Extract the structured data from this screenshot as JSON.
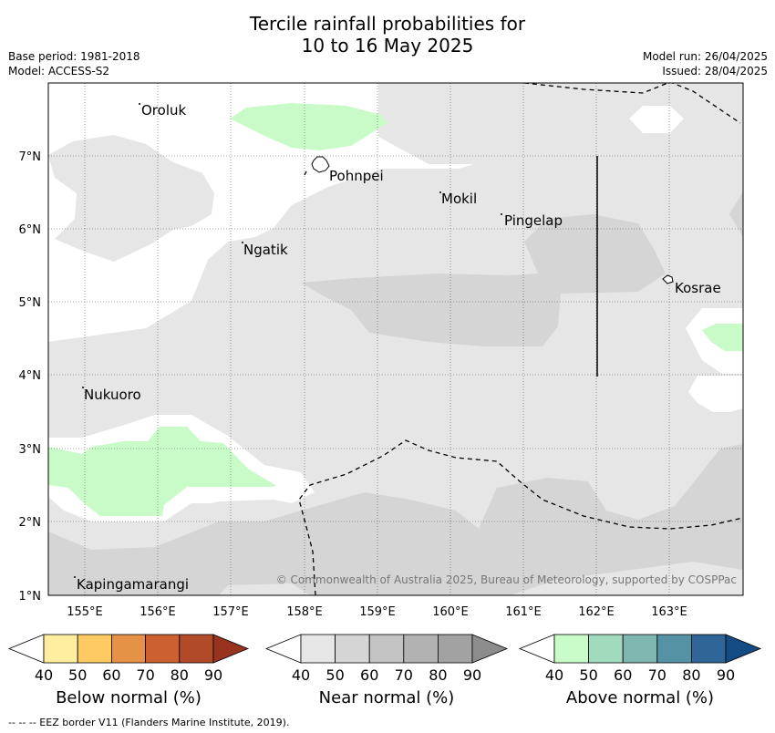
{
  "header": {
    "title_line1": "Tercile rainfall probabilities for",
    "title_line2": "10 to 16 May 2025",
    "base_period": "Base period: 1981-2018",
    "model": "Model: ACCESS-S2",
    "model_run": "Model run: 26/04/2025",
    "issued": "Issued: 28/04/2025"
  },
  "map": {
    "lat_labels": [
      "7°N",
      "6°N",
      "5°N",
      "4°N",
      "3°N",
      "2°N",
      "1°N"
    ],
    "lon_labels": [
      "155°E",
      "156°E",
      "157°E",
      "158°E",
      "159°E",
      "160°E",
      "161°E",
      "162°E",
      "163°E"
    ],
    "places": [
      {
        "name": "Oroluk"
      },
      {
        "name": "Pohnpei"
      },
      {
        "name": "Mokil"
      },
      {
        "name": "Pingelap"
      },
      {
        "name": "Ngatik"
      },
      {
        "name": "Kosrae"
      },
      {
        "name": "Nukuoro"
      },
      {
        "name": "Kapingamarangi"
      }
    ],
    "copyright": "© Commonwealth of Australia 2025, Bureau of Meteorology, supported by COSPPac",
    "colors": {
      "near_40": "#e6e6e6",
      "near_50": "#d5d5d5",
      "above_40": "#c9fbc9",
      "white": "#ffffff"
    }
  },
  "colorbars": [
    {
      "label": "Below normal (%)",
      "ticks": [
        "40",
        "50",
        "60",
        "70",
        "80",
        "90"
      ],
      "colors": [
        "#ffffff",
        "#ffeea0",
        "#fdca64",
        "#e59146",
        "#cd6030",
        "#b04a28",
        "#983320"
      ]
    },
    {
      "label": "Near normal (%)",
      "ticks": [
        "40",
        "50",
        "60",
        "70",
        "80",
        "90"
      ],
      "colors": [
        "#ffffff",
        "#e6e6e6",
        "#d5d5d5",
        "#c3c3c3",
        "#b2b2b2",
        "#a2a2a2",
        "#8c8c8c"
      ]
    },
    {
      "label": "Above normal (%)",
      "ticks": [
        "40",
        "50",
        "60",
        "70",
        "80",
        "90"
      ],
      "colors": [
        "#ffffff",
        "#c9fbc9",
        "#a2dabd",
        "#80b6b0",
        "#5592a3",
        "#2f6697",
        "#134b82"
      ]
    }
  ],
  "footer": "--  --  -- EEZ border V11 (Flanders Marine Institute, 2019)."
}
